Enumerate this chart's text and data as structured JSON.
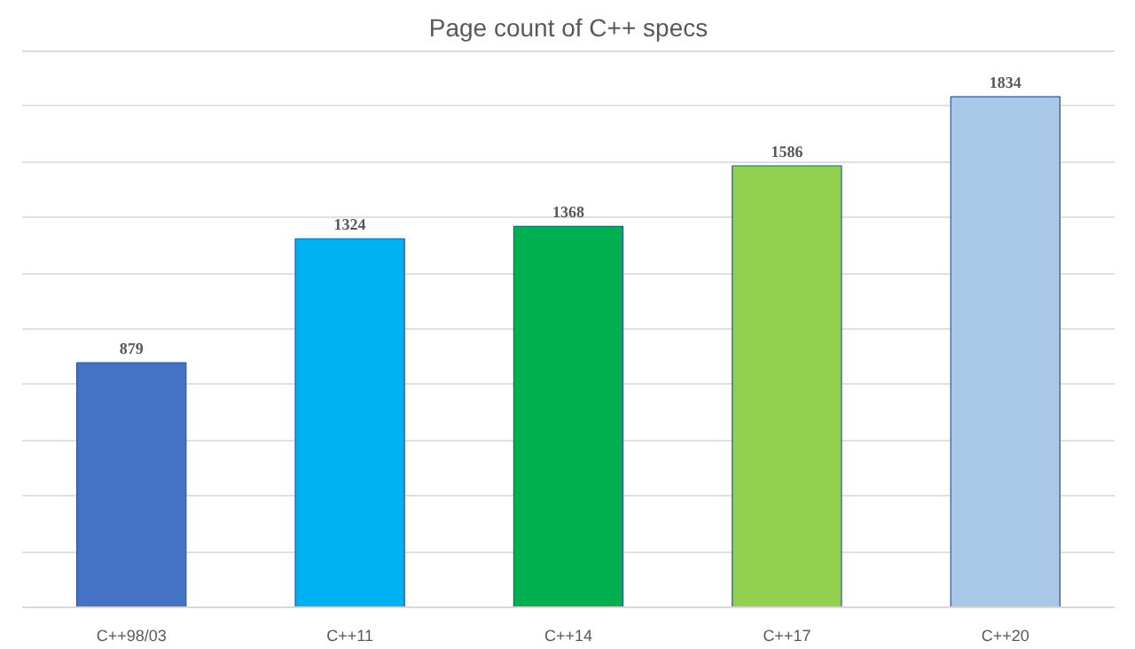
{
  "chart_data": {
    "type": "bar",
    "title": "Page count of C++ specs",
    "categories": [
      "C++98/03",
      "C++11",
      "C++14",
      "C++17",
      "C++20"
    ],
    "values": [
      879,
      1324,
      1368,
      1586,
      1834
    ],
    "colors": [
      "#4472c4",
      "#00b0f0",
      "#00b050",
      "#92d050",
      "#a9c8e8"
    ],
    "ylim": [
      0,
      2000
    ],
    "yticks": [
      {
        "value": 0,
        "label": null
      },
      {
        "value": 200,
        "label": null
      },
      {
        "value": 400,
        "label": null
      },
      {
        "value": 600,
        "label": null
      },
      {
        "value": 800,
        "label": null
      },
      {
        "value": 1000,
        "label": null
      },
      {
        "value": 1200,
        "label": null
      },
      {
        "value": 1400,
        "label": null
      },
      {
        "value": 1600,
        "label": null
      },
      {
        "value": 1800,
        "label": null
      },
      {
        "value": 2000,
        "label": null
      }
    ],
    "grid": "y",
    "data_labels": true,
    "tick_labels": "x"
  }
}
